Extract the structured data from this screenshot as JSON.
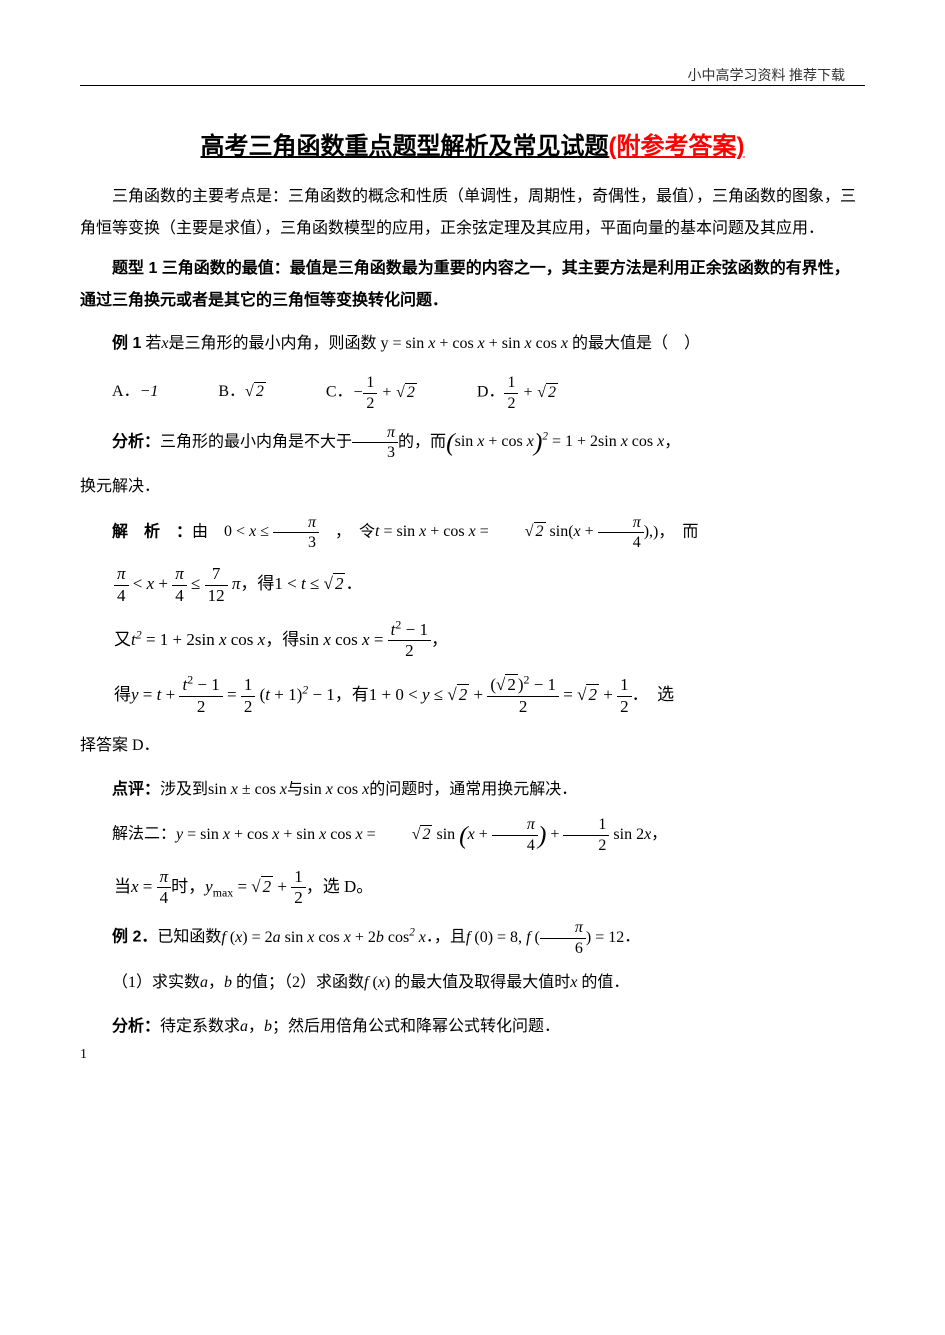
{
  "header": {
    "right": "小中高学习资料  推荐下载"
  },
  "title": {
    "black": "高考三角函数重点题型解析及常见试题",
    "red": "(附参考答案)"
  },
  "intro": "三角函数的主要考点是：三角函数的概念和性质（单调性，周期性，奇偶性，最值），三角函数的图象，三角恒等变换（主要是求值），三角函数模型的应用，正余弦定理及其应用，平面向量的基本问题及其应用．",
  "section1": {
    "title": "题型 1 三角函数的最值：最值是三角函数最为重要的内容之一，其主要方法是利用正余弦函数的有界性，通过三角换元或者是其它的三角恒等变换转化问题．"
  },
  "ex1": {
    "label": "例 1",
    "text_before": " 若",
    "var": "x",
    "text_mid": "是三角形的最小内角，则函数",
    "expr": "y = sin x + cos x + sin x cos x",
    "text_after": " 的最大值是（　）",
    "options": {
      "A": "A．",
      "A_val": "−1",
      "B": "B．",
      "B_val_sqrt": "2",
      "C": "C．",
      "C_frac_num": "1",
      "C_frac_den": "2",
      "C_sqrt": "2",
      "D": "D．",
      "D_frac_num": "1",
      "D_frac_den": "2",
      "D_sqrt": "2"
    }
  },
  "analysis1": {
    "label": "分析：",
    "text_a": "三角形的最小内角是不大于",
    "frac1_num": "π",
    "frac1_den": "3",
    "text_b": "的，而",
    "eq_lhs": "(sin x + cos x)",
    "eq_rhs": "= 1 + 2sin x cos x",
    "text_c": "，",
    "text_d": "换元解决．"
  },
  "solution1": {
    "label": "解　析　：",
    "s1_a": "由",
    "s1_ineq_l": "0 < x ≤",
    "s1_frac_num": "π",
    "s1_frac_den": "3",
    "s1_b": "　，　令",
    "s1_t": "t = sin x + cos x =",
    "s1_sqrt": "2",
    "s1_sin": "sin(x +",
    "s1_frac2_num": "π",
    "s1_frac2_den": "4",
    "s1_end": ")，　而",
    "s2_frac1_num": "π",
    "s2_frac1_den": "4",
    "s2_mid": "< x +",
    "s2_frac2_num": "π",
    "s2_frac2_den": "4",
    "s2_le": "≤",
    "s2_frac3_num": "7",
    "s2_frac3_den": "12",
    "s2_pi": "π",
    "s2_text": "，得",
    "s2_res": "1 < t ≤",
    "s2_sqrt": "2",
    "s2_dot": "．",
    "s3_a": "又",
    "s3_t2": "t",
    "s3_eq": " = 1 + 2sin x cos x",
    "s3_b": "，得",
    "s3_sincos": "sin x cos x =",
    "s3_frac_num": "t² − 1",
    "s3_frac_den": "2",
    "s3_c": "，",
    "s4_a": "得",
    "s4_y": "y = t +",
    "s4_frac1_num": "t² − 1",
    "s4_frac1_den": "2",
    "s4_eq1": "=",
    "s4_frac2_num": "1",
    "s4_frac2_den": "2",
    "s4_paren": "(t + 1)² − 1",
    "s4_b": "，有",
    "s4_range": "1 + 0 < y ≤",
    "s4_sqrt1": "2",
    "s4_plus": "+",
    "s4_frac3_num_a": "(",
    "s4_frac3_sqrt": "2",
    "s4_frac3_num_b": ")² − 1",
    "s4_frac3_den": "2",
    "s4_eq2": "=",
    "s4_sqrt2": "2",
    "s4_plus2": "+",
    "s4_frac4_num": "1",
    "s4_frac4_den": "2",
    "s4_end": "．　选",
    "s5": "择答案 D．"
  },
  "comment1": {
    "label": "点评：",
    "text_a": "涉及到",
    "expr1": "sin x ± cos x",
    "text_b": "与",
    "expr2": "sin x cos x",
    "text_c": "的问题时，通常用换元解决．"
  },
  "sol2": {
    "label": "解法二：",
    "y": "y = sin x + cos x + sin x cos x =",
    "sqrt1": "2",
    "sin_open": "sin",
    "frac_num": "π",
    "frac_den": "4",
    "plus": "+",
    "frac2_num": "1",
    "frac2_den": "2",
    "sin2x": "sin 2x",
    "comma": "，",
    "when_a": "当",
    "when_x": "x =",
    "when_frac_num": "π",
    "when_frac_den": "4",
    "when_b": "时，",
    "ymax": "y",
    "ymax_sub": "max",
    "ymax_eq": " =",
    "ymax_sqrt": "2",
    "ymax_plus": "+",
    "ymax_frac_num": "1",
    "ymax_frac_den": "2",
    "when_c": "，选 D。"
  },
  "ex2": {
    "label": "例 2．",
    "text_a": "已知函数",
    "f": "f (x) = 2a sin x cos x + 2b cos² x",
    "text_b": "．，且",
    "f0": "f (0) = 8,",
    "fpi6_a": "f (",
    "fpi6_num": "π",
    "fpi6_den": "6",
    "fpi6_b": ") = 12",
    "text_c": "．",
    "q1": "（1）求实数",
    "a": "a",
    "q1b": "，",
    "b": "b",
    "q1c": " 的值；（2）求函数",
    "fx": "f (x)",
    "q1d": " 的最大值及取得最大值时",
    "x": "x",
    "q1e": " 的值．"
  },
  "analysis2": {
    "label": "分析：",
    "text_a": "待定系数求",
    "a": "a",
    "comma": "，",
    "b": "b",
    "text_b": "；然后用倍角公式和降幂公式转化问题．"
  },
  "page": "1"
}
